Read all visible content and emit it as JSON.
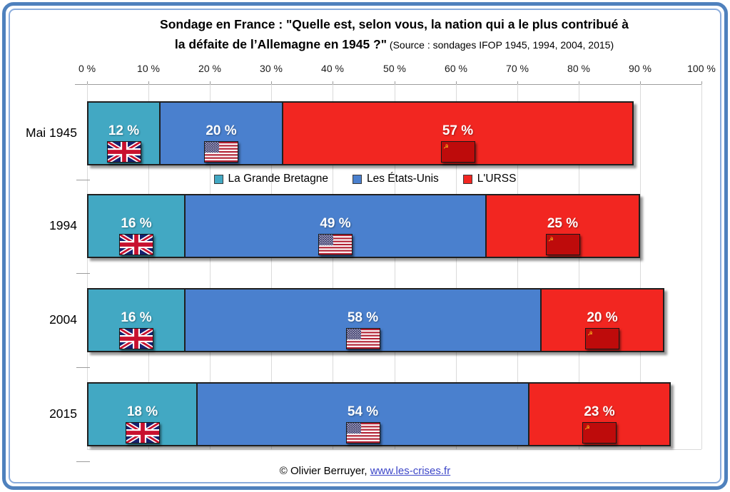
{
  "title": {
    "line1": "Sondage en France : \"Quelle est, selon vous, la nation qui a le plus contribué à",
    "line2_bold": "la défaite de l’Allemagne en 1945 ?\"",
    "line2_source": " (Source : sondages IFOP 1945, 1994, 2004, 2015)"
  },
  "chart_data": {
    "type": "bar",
    "orientation": "horizontal-stacked",
    "title": "Sondage en France : \"Quelle est, selon vous, la nation qui a le plus contribué à la défaite de l’Allemagne en 1945 ?\"",
    "subtitle": "(Source : sondages IFOP 1945, 1994, 2004, 2015)",
    "categories": [
      "Mai 1945",
      "1994",
      "2004",
      "2015"
    ],
    "series": [
      {
        "name": "La Grande Bretagne",
        "color": "#42A8C3",
        "icon": "uk-flag-icon",
        "values": [
          12,
          16,
          16,
          18
        ]
      },
      {
        "name": "Les États-Unis",
        "color": "#4A80CE",
        "icon": "us-flag-icon",
        "values": [
          20,
          49,
          58,
          54
        ]
      },
      {
        "name": "L'URSS",
        "color": "#F22621",
        "icon": "ussr-flag-icon",
        "values": [
          57,
          25,
          20,
          23
        ]
      }
    ],
    "value_suffix": " %",
    "xlim": [
      0,
      100
    ],
    "x_ticks": [
      "0 %",
      "10 %",
      "20 %",
      "30 %",
      "40 %",
      "50 %",
      "60 %",
      "70 %",
      "80 %",
      "90 %",
      "100 %"
    ],
    "grid": true,
    "legend_position": "between-first-and-second-row"
  },
  "footer": {
    "copyright": "© Olivier Berruyer, ",
    "link": "www.les-crises.fr"
  }
}
